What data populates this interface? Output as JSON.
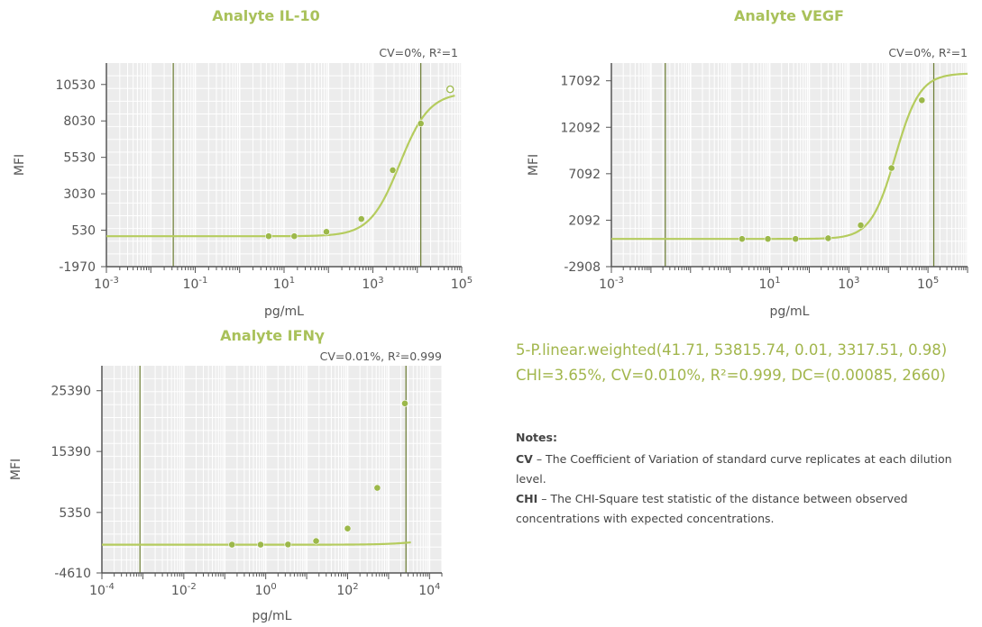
{
  "colors": {
    "accent": "#a9c15a",
    "curve": "#b5cc5e",
    "point": "#9cb84a",
    "vline": "#6b7c32",
    "grid_bg": "#ececec"
  },
  "formula": {
    "line1": "5-P.linear.weighted(41.71, 53815.74, 0.01, 3317.51, 0.98)",
    "line2": "CHI=3.65%, CV=0.010%, R²=0.999, DC=(0.00085, 2660)"
  },
  "notes": {
    "heading": "Notes:",
    "cv_term": "CV",
    "cv_text": " – The Coefficient of Variation of standard curve replicates at each dilution level.",
    "chi_term": "CHI",
    "chi_text": " – The CHI-Square test statistic of the distance between observed concentrations with expected concentrations."
  },
  "chart_data": [
    {
      "type": "scatter",
      "title": "Analyte IL-10",
      "stats": "CV=0%, R²=1",
      "xlabel": "pg/mL",
      "ylabel": "MFI",
      "x_scale": "log",
      "xlim": [
        0.001,
        100000
      ],
      "ylim": [
        -1970,
        12000
      ],
      "yticks": [
        -1970,
        530,
        3030,
        5530,
        8030,
        10530
      ],
      "xticks": [
        {
          "base": "10",
          "exp": "-3",
          "v": 0.001
        },
        {
          "base": "10",
          "exp": "-1",
          "v": 0.1
        },
        {
          "base": "10",
          "exp": "1",
          "v": 10
        },
        {
          "base": "10",
          "exp": "3",
          "v": 1000
        },
        {
          "base": "10",
          "exp": "5",
          "v": 100000
        }
      ],
      "vlines": [
        0.032,
        12000
      ],
      "curve": {
        "A": 120,
        "B": 1.3,
        "C": 4000,
        "D": 10000,
        "G": 1
      },
      "points": [
        {
          "x": 4.5,
          "y": 120
        },
        {
          "x": 17,
          "y": 120
        },
        {
          "x": 90,
          "y": 420
        },
        {
          "x": 550,
          "y": 1300
        },
        {
          "x": 2800,
          "y": 4650
        },
        {
          "x": 12000,
          "y": 7850
        },
        {
          "x": 55000,
          "y": 10200,
          "hollow": true
        }
      ],
      "curve_x": [
        0.001,
        70000
      ],
      "gridColor": "#ffffff"
    },
    {
      "type": "scatter",
      "title": "Analyte VEGF",
      "stats": "CV=0%, R²=1",
      "xlabel": "pg/mL",
      "ylabel": "MFI",
      "x_scale": "log",
      "xlim": [
        0.001,
        1000000
      ],
      "ylim": [
        -2908,
        19000
      ],
      "yticks": [
        -2908,
        2092,
        7092,
        12092,
        17092
      ],
      "xticks": [
        {
          "base": "10",
          "exp": "-3",
          "v": 0.001
        },
        {
          "base": "10",
          "exp": "1",
          "v": 10
        },
        {
          "base": "10",
          "exp": "3",
          "v": 1000
        },
        {
          "base": "10",
          "exp": "5",
          "v": 100000
        }
      ],
      "vlines": [
        0.023,
        140000
      ],
      "curve": {
        "A": 80,
        "B": 1.4,
        "C": 15000,
        "D": 17900,
        "G": 1
      },
      "points": [
        {
          "x": 2,
          "y": 80
        },
        {
          "x": 9,
          "y": 80
        },
        {
          "x": 45,
          "y": 80
        },
        {
          "x": 300,
          "y": 150
        },
        {
          "x": 2000,
          "y": 1550
        },
        {
          "x": 12000,
          "y": 7700
        },
        {
          "x": 70000,
          "y": 15000
        }
      ],
      "curve_x": [
        0.001,
        1000000
      ],
      "gridColor": "#ffffff"
    },
    {
      "type": "scatter",
      "title": "Analyte IFNγ",
      "stats": "CV=0.01%, R²=0.999",
      "xlabel": "pg/mL",
      "ylabel": "MFI",
      "x_scale": "log",
      "xlim": [
        0.0001,
        20000
      ],
      "ylim": [
        -4610,
        29500
      ],
      "yticks": [
        -4610,
        5350,
        15390,
        25390
      ],
      "xticks": [
        {
          "base": "10",
          "exp": "-4",
          "v": 0.0001
        },
        {
          "base": "10",
          "exp": "-2",
          "v": 0.01
        },
        {
          "base": "10",
          "exp": "0",
          "v": 1
        },
        {
          "base": "10",
          "exp": "2",
          "v": 100
        },
        {
          "base": "10",
          "exp": "4",
          "v": 10000
        }
      ],
      "vlines": [
        0.00085,
        2660
      ],
      "curve": {
        "A": 41.71,
        "B": 0.98,
        "C": 3317.51,
        "D": 53815.74,
        "G": 0.01
      },
      "points": [
        {
          "x": 0.15,
          "y": 50
        },
        {
          "x": 0.75,
          "y": 50
        },
        {
          "x": 3.5,
          "y": 80
        },
        {
          "x": 17,
          "y": 650
        },
        {
          "x": 100,
          "y": 2700
        },
        {
          "x": 530,
          "y": 9400
        },
        {
          "x": 2500,
          "y": 23300
        }
      ],
      "curve_x": [
        0.0001,
        3500
      ],
      "gridColor": "#ffffff"
    }
  ]
}
